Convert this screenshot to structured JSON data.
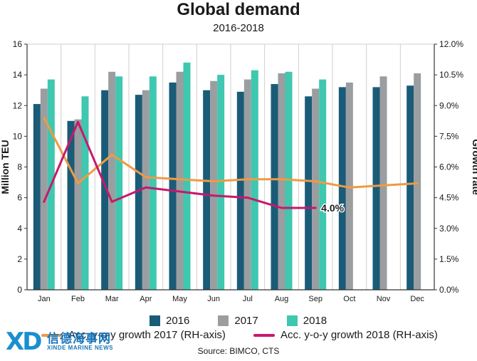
{
  "title": "Global demand",
  "subtitle": "2016-2018",
  "source": "Source: BIMCO, CTS",
  "watermark": {
    "mark": "XD",
    "name_cn": "信德海事网",
    "name_en": "XINDE MARINE NEWS"
  },
  "colors": {
    "s2016": "#1a5b78",
    "s2017": "#9a9ea0",
    "s2018": "#3fc7b0",
    "g2017": "#ef9a44",
    "g2018": "#c8186c",
    "grid": "#cfcfcf"
  },
  "chart_data": {
    "type": "bar",
    "categories": [
      "Jan",
      "Feb",
      "Mar",
      "Apr",
      "May",
      "Jun",
      "Jul",
      "Aug",
      "Sep",
      "Oct",
      "Nov",
      "Dec"
    ],
    "series": [
      {
        "name": "2016",
        "values": [
          12.1,
          11.0,
          13.0,
          12.7,
          13.5,
          13.0,
          12.9,
          13.4,
          12.6,
          13.2,
          13.2,
          13.3
        ]
      },
      {
        "name": "2017",
        "values": [
          13.1,
          11.1,
          14.2,
          13.0,
          14.2,
          13.6,
          13.7,
          14.1,
          13.1,
          13.5,
          13.9,
          14.1
        ]
      },
      {
        "name": "2018",
        "values": [
          13.7,
          12.6,
          13.9,
          13.9,
          14.8,
          14.0,
          14.3,
          14.2,
          13.7,
          null,
          null,
          null
        ]
      }
    ],
    "lines": [
      {
        "name": "Acc. y-o-y growth 2017 (RH-axis)",
        "axis": "right",
        "values": [
          8.4,
          5.2,
          6.6,
          5.5,
          5.4,
          5.3,
          5.4,
          5.4,
          5.3,
          5.0,
          5.1,
          5.2
        ]
      },
      {
        "name": "Acc. y-o-y growth 2018  (RH-axis)",
        "axis": "right",
        "values": [
          4.3,
          8.2,
          4.3,
          5.0,
          4.8,
          4.6,
          4.5,
          4.0,
          4.0,
          null,
          null,
          null
        ]
      }
    ],
    "annotation": {
      "text": "4.0%",
      "series": 1,
      "index": 8
    },
    "ylabel": "Million TEU",
    "y2label": "Growth rate",
    "ylim": [
      0,
      16
    ],
    "yticks": [
      "0",
      "2",
      "4",
      "6",
      "8",
      "10",
      "12",
      "14",
      "16"
    ],
    "y2lim": [
      0,
      12
    ],
    "y2ticks": [
      "0.0%",
      "1.5%",
      "3.0%",
      "4.5%",
      "6.0%",
      "7.5%",
      "9.0%",
      "10.5%",
      "12.0%"
    ],
    "grid": "vertical",
    "legend": "bottom"
  }
}
